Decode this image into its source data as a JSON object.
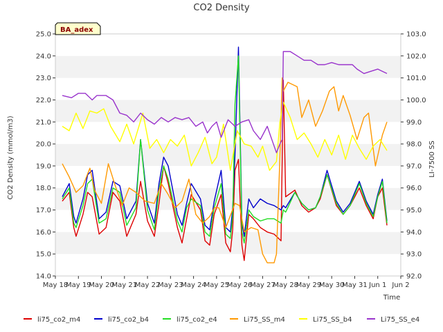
{
  "chart_data": {
    "type": "line",
    "title": "CO2 Density",
    "xlabel": "Time",
    "ylabel": "CO2 Density (mmol/m3)",
    "y2label": "LI-7500 SS",
    "badge": "BA_adex",
    "xlim": [
      0,
      15
    ],
    "ylim": [
      14.0,
      25.0
    ],
    "y2lim": [
      92.0,
      103.0
    ],
    "x_ticks": [
      "May 18",
      "May 19",
      "May 20",
      "May 21",
      "May 22",
      "May 23",
      "May 24",
      "May 25",
      "May 26",
      "May 27",
      "May 28",
      "May 29",
      "May 30",
      "May 31",
      "Jun 1",
      "Jun 2"
    ],
    "y_ticks": [
      "14.0",
      "15.0",
      "16.0",
      "17.0",
      "18.0",
      "19.0",
      "20.0",
      "21.0",
      "22.0",
      "23.0",
      "24.0",
      "25.0"
    ],
    "y2_ticks": [
      "92.0",
      "93.0",
      "94.0",
      "95.0",
      "96.0",
      "97.0",
      "98.0",
      "99.0",
      "100.0",
      "101.0",
      "102.0",
      "103.0"
    ],
    "grid": "horizontal bands",
    "legend_position": "bottom",
    "series": [
      {
        "name": "li75_co2_m4",
        "color": "#dd0000",
        "axis": "left",
        "x": [
          0.3,
          0.6,
          0.8,
          0.9,
          1.2,
          1.4,
          1.6,
          1.9,
          2.2,
          2.5,
          2.8,
          3.1,
          3.5,
          3.7,
          4.0,
          4.3,
          4.5,
          4.7,
          4.9,
          5.3,
          5.5,
          5.7,
          5.9,
          6.3,
          6.5,
          6.7,
          6.9,
          7.2,
          7.4,
          7.6,
          7.7,
          7.8,
          7.95,
          8.1,
          8.2,
          8.4,
          8.6,
          8.9,
          9.2,
          9.5,
          9.8,
          9.9,
          10.0,
          10.4,
          10.7,
          11.0,
          11.3,
          11.5,
          11.8,
          12.2,
          12.5,
          12.8,
          13.0,
          13.2,
          13.5,
          13.8,
          14.0,
          14.2,
          14.4
        ],
        "y": [
          17.4,
          17.8,
          16.2,
          15.8,
          16.8,
          17.8,
          17.6,
          15.9,
          16.2,
          17.8,
          17.4,
          15.8,
          16.8,
          18.3,
          16.5,
          15.8,
          17.3,
          19.0,
          18.2,
          16.2,
          15.5,
          16.6,
          17.7,
          17.0,
          15.6,
          15.4,
          16.8,
          17.7,
          15.5,
          15.1,
          16.1,
          18.8,
          19.3,
          15.4,
          14.7,
          16.8,
          16.6,
          16.2,
          16.0,
          15.9,
          15.6,
          22.9,
          17.6,
          17.9,
          17.2,
          16.9,
          17.1,
          17.5,
          18.6,
          17.2,
          16.8,
          17.2,
          17.6,
          18.0,
          17.2,
          16.6,
          17.6,
          18.0,
          16.3
        ]
      },
      {
        "name": "li75_co2_b4",
        "color": "#0000cc",
        "axis": "left",
        "x": [
          0.3,
          0.6,
          0.8,
          0.9,
          1.2,
          1.4,
          1.6,
          1.9,
          2.2,
          2.5,
          2.8,
          3.1,
          3.5,
          3.7,
          4.0,
          4.3,
          4.5,
          4.7,
          4.9,
          5.3,
          5.5,
          5.7,
          5.9,
          6.3,
          6.5,
          6.7,
          6.9,
          7.2,
          7.4,
          7.6,
          7.7,
          7.8,
          7.95,
          8.1,
          8.2,
          8.4,
          8.6,
          8.9,
          9.2,
          9.5,
          9.8,
          9.9,
          10.0,
          10.4,
          10.7,
          11.0,
          11.3,
          11.5,
          11.8,
          12.2,
          12.5,
          12.8,
          13.0,
          13.2,
          13.5,
          13.8,
          14.0,
          14.2,
          14.4
        ],
        "y": [
          17.6,
          18.2,
          16.7,
          16.4,
          17.5,
          18.6,
          18.8,
          16.6,
          16.9,
          18.3,
          18.1,
          16.6,
          17.4,
          20.2,
          17.3,
          16.4,
          18.2,
          19.4,
          19.0,
          16.8,
          16.3,
          17.3,
          18.2,
          17.5,
          16.3,
          16.1,
          17.4,
          18.8,
          16.2,
          16.0,
          17.1,
          19.5,
          24.4,
          16.4,
          15.8,
          17.5,
          17.1,
          17.5,
          17.3,
          17.2,
          17.0,
          17.2,
          17.1,
          17.8,
          17.3,
          17.0,
          17.1,
          17.6,
          18.8,
          17.4,
          16.9,
          17.3,
          17.8,
          18.3,
          17.4,
          16.8,
          17.7,
          18.4,
          16.5
        ]
      },
      {
        "name": "li75_co2_e4",
        "color": "#22dd22",
        "axis": "left",
        "x": [
          0.3,
          0.6,
          0.8,
          0.9,
          1.2,
          1.4,
          1.6,
          1.9,
          2.2,
          2.5,
          2.8,
          3.1,
          3.5,
          3.7,
          4.0,
          4.3,
          4.5,
          4.7,
          4.9,
          5.3,
          5.5,
          5.7,
          5.9,
          6.3,
          6.5,
          6.7,
          6.9,
          7.2,
          7.4,
          7.6,
          7.7,
          7.8,
          7.95,
          8.1,
          8.2,
          8.4,
          8.6,
          8.9,
          9.2,
          9.5,
          9.8,
          9.9,
          10.0,
          10.4,
          10.7,
          11.0,
          11.3,
          11.5,
          11.8,
          12.2,
          12.5,
          12.8,
          13.0,
          13.2,
          13.5,
          13.8,
          14.0,
          14.2,
          14.4
        ],
        "y": [
          17.5,
          18.0,
          16.4,
          16.2,
          17.2,
          18.2,
          18.4,
          16.4,
          16.6,
          18.0,
          17.8,
          16.3,
          17.1,
          20.2,
          17.0,
          16.1,
          17.9,
          19.0,
          18.4,
          16.5,
          16.0,
          17.1,
          17.5,
          17.2,
          16.0,
          15.8,
          17.1,
          18.2,
          15.9,
          15.7,
          16.7,
          21.8,
          24.0,
          16.0,
          15.5,
          17.0,
          16.7,
          16.5,
          16.6,
          16.6,
          16.4,
          17.0,
          16.9,
          17.8,
          17.3,
          17.0,
          17.1,
          17.6,
          18.6,
          17.3,
          16.8,
          17.2,
          17.7,
          18.2,
          17.3,
          16.7,
          17.6,
          18.3,
          16.4
        ]
      },
      {
        "name": "Li75_SS_m4",
        "color": "#ff9900",
        "axis": "right",
        "x": [
          0.3,
          0.6,
          0.9,
          1.2,
          1.5,
          1.7,
          2.0,
          2.3,
          2.6,
          2.9,
          3.2,
          3.5,
          3.9,
          4.3,
          4.6,
          4.9,
          5.2,
          5.5,
          5.8,
          6.1,
          6.4,
          6.7,
          6.9,
          7.1,
          7.4,
          7.8,
          8.0,
          8.2,
          8.5,
          8.8,
          9.0,
          9.2,
          9.5,
          9.6,
          9.75,
          9.85,
          9.9,
          10.1,
          10.5,
          10.7,
          11.0,
          11.3,
          11.6,
          11.9,
          12.1,
          12.3,
          12.5,
          12.8,
          13.1,
          13.4,
          13.6,
          13.9,
          14.2,
          14.4
        ],
        "y": [
          97.1,
          96.5,
          95.8,
          96.1,
          96.9,
          95.9,
          95.3,
          97.1,
          96.1,
          95.2,
          96.0,
          95.8,
          95.4,
          95.3,
          96.2,
          95.7,
          95.1,
          95.4,
          96.4,
          94.8,
          94.4,
          94.7,
          95.1,
          95.1,
          94.2,
          95.3,
          95.2,
          94.0,
          94.2,
          94.1,
          93.0,
          92.6,
          92.6,
          93.0,
          97.4,
          101.0,
          100.4,
          100.8,
          100.6,
          99.2,
          100.0,
          98.8,
          99.5,
          100.4,
          100.6,
          99.5,
          100.2,
          99.3,
          98.2,
          99.2,
          99.4,
          97.0,
          98.4,
          99.0
        ]
      },
      {
        "name": "Li75_SS_b4",
        "color": "#ffff00",
        "axis": "right",
        "x": [
          0.3,
          0.6,
          0.9,
          1.2,
          1.5,
          1.8,
          2.1,
          2.4,
          2.8,
          3.1,
          3.4,
          3.8,
          4.1,
          4.4,
          4.7,
          5.0,
          5.3,
          5.6,
          5.9,
          6.2,
          6.5,
          6.8,
          7.0,
          7.3,
          7.6,
          7.9,
          8.2,
          8.5,
          8.8,
          9.0,
          9.3,
          9.6,
          9.75,
          9.9,
          10.2,
          10.5,
          10.8,
          11.1,
          11.4,
          11.7,
          12.0,
          12.3,
          12.6,
          12.9,
          13.2,
          13.5,
          13.8,
          14.1,
          14.4
        ],
        "y": [
          98.8,
          98.6,
          99.4,
          98.7,
          99.5,
          99.4,
          99.6,
          98.8,
          98.1,
          98.9,
          98.0,
          99.4,
          97.8,
          98.2,
          97.6,
          98.2,
          97.9,
          98.4,
          97.0,
          97.6,
          98.3,
          97.1,
          97.4,
          98.9,
          96.8,
          98.6,
          98.0,
          97.9,
          97.4,
          97.9,
          96.8,
          97.2,
          99.0,
          99.9,
          99.2,
          98.2,
          98.5,
          98.0,
          97.4,
          98.2,
          97.5,
          98.4,
          97.3,
          98.4,
          97.8,
          97.3,
          97.9,
          98.2,
          97.7
        ]
      },
      {
        "name": "Li75_SS_e4",
        "color": "#9933cc",
        "axis": "right",
        "x": [
          0.3,
          0.7,
          1.0,
          1.3,
          1.6,
          1.8,
          2.2,
          2.5,
          2.8,
          3.1,
          3.4,
          3.7,
          4.0,
          4.3,
          4.6,
          4.9,
          5.2,
          5.5,
          5.8,
          6.1,
          6.4,
          6.6,
          6.8,
          7.0,
          7.2,
          7.5,
          7.8,
          8.1,
          8.4,
          8.6,
          8.9,
          9.2,
          9.4,
          9.6,
          9.75,
          9.85,
          9.9,
          10.2,
          10.5,
          10.8,
          11.1,
          11.4,
          11.7,
          12.0,
          12.3,
          12.6,
          12.9,
          13.1,
          13.4,
          13.7,
          14.0,
          14.2,
          14.4
        ],
        "y": [
          100.2,
          100.1,
          100.3,
          100.3,
          100.0,
          100.2,
          100.2,
          100.0,
          99.4,
          99.3,
          99.0,
          99.4,
          99.1,
          98.9,
          99.2,
          99.0,
          99.2,
          99.1,
          99.2,
          98.8,
          99.0,
          98.5,
          98.8,
          99.0,
          98.3,
          99.1,
          98.8,
          99.0,
          99.1,
          98.6,
          98.2,
          98.8,
          98.2,
          97.6,
          98.0,
          98.2,
          102.2,
          102.2,
          102.0,
          101.8,
          101.8,
          101.6,
          101.6,
          101.7,
          101.6,
          101.6,
          101.6,
          101.4,
          101.2,
          101.3,
          101.4,
          101.3,
          101.2
        ]
      }
    ]
  }
}
